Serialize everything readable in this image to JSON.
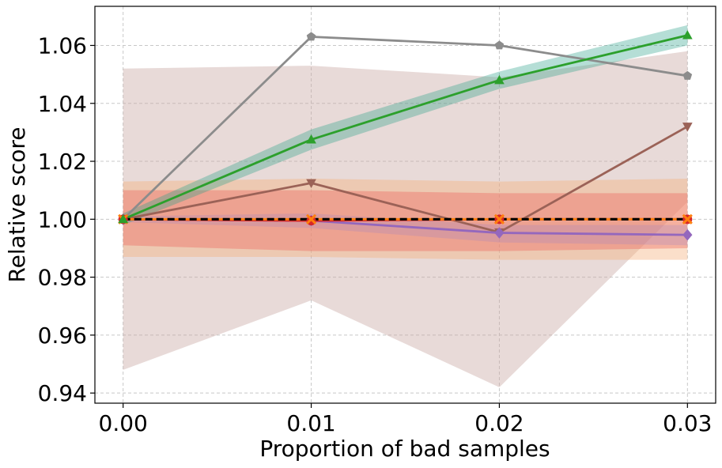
{
  "chart_data": {
    "type": "line",
    "title": "",
    "xlabel": "Proportion of bad samples",
    "ylabel": "Relative score",
    "x": [
      0.0,
      0.01,
      0.02,
      0.03
    ],
    "x_tick_labels": [
      "0.00",
      "0.01",
      "0.02",
      "0.03"
    ],
    "y_ticks": [
      0.94,
      0.96,
      0.98,
      1.0,
      1.02,
      1.04,
      1.06
    ],
    "y_tick_labels": [
      "0.94",
      "0.96",
      "0.98",
      "1.00",
      "1.02",
      "1.04",
      "1.06"
    ],
    "xlim": [
      -0.0015,
      0.0315
    ],
    "ylim": [
      0.9365,
      1.0735
    ],
    "grid": true,
    "bands": [
      {
        "name": "brown-band",
        "color": "#c8a6a2",
        "opacity": 0.42,
        "lower": [
          0.948,
          0.972,
          0.942,
          1.006
        ],
        "upper": [
          1.052,
          1.053,
          1.049,
          1.058
        ]
      },
      {
        "name": "orange-band",
        "color": "#f6b07a",
        "opacity": 0.4,
        "lower": [
          0.987,
          0.987,
          0.986,
          0.986
        ],
        "upper": [
          1.013,
          1.014,
          1.013,
          1.014
        ]
      },
      {
        "name": "red-band",
        "color": "#ee6a5f",
        "opacity": 0.4,
        "lower": [
          0.991,
          0.989,
          0.989,
          0.99
        ],
        "upper": [
          1.01,
          1.01,
          1.009,
          1.009
        ]
      },
      {
        "name": "purple-band",
        "color": "#9b7fc9",
        "opacity": 0.25,
        "lower": [
          0.999,
          0.997,
          0.992,
          0.991
        ],
        "upper": [
          1.001,
          1.002,
          0.998,
          0.998
        ]
      },
      {
        "name": "green-band",
        "color": "#2ca08a",
        "opacity": 0.35,
        "lower": [
          0.998,
          1.024,
          1.045,
          1.06
        ],
        "upper": [
          1.002,
          1.031,
          1.051,
          1.067
        ]
      }
    ],
    "series": [
      {
        "name": "gray",
        "color": "#8c8c8c",
        "marker": "pentagon",
        "values": [
          1.0,
          1.063,
          1.06,
          1.0495
        ]
      },
      {
        "name": "brown",
        "color": "#9b6257",
        "marker": "triangle-down",
        "values": [
          1.0,
          1.0125,
          0.9955,
          1.032
        ]
      },
      {
        "name": "purple",
        "color": "#9467bd",
        "marker": "diamond",
        "values": [
          1.0,
          0.9995,
          0.9953,
          0.9946
        ]
      },
      {
        "name": "red",
        "color": "#d62728",
        "marker": "circle",
        "values": [
          1.0,
          0.9995,
          1.0,
          1.0
        ]
      },
      {
        "name": "orange",
        "color": "#ff7f0e",
        "marker": "x",
        "values": [
          1.0,
          1.0,
          1.0,
          1.0
        ]
      },
      {
        "name": "green",
        "color": "#2ca02c",
        "marker": "triangle-up",
        "values": [
          1.0,
          1.0275,
          1.048,
          1.0635
        ]
      },
      {
        "name": "baseline",
        "color": "#000000",
        "marker": "none",
        "dashed": true,
        "values": [
          1.0,
          1.0,
          1.0,
          1.0
        ]
      }
    ]
  }
}
